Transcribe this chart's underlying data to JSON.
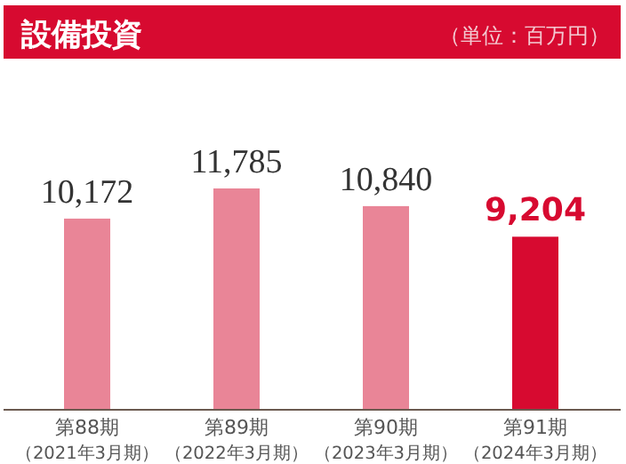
{
  "chart_data": {
    "type": "bar",
    "title": "設備投資",
    "subtitle": "（単位：百万円）",
    "categories": [
      "第88期（2021年3月期）",
      "第89期（2022年3月期）",
      "第90期（2023年3月期）",
      "第91期（2024年3月期）"
    ],
    "values": [
      10172,
      11785,
      10840,
      9204
    ],
    "colors": [
      "#e98597",
      "#e98597",
      "#e98597",
      "#d70a30"
    ],
    "value_labels": [
      "10,172",
      "11,785",
      "10,840",
      "9,204"
    ]
  }
}
